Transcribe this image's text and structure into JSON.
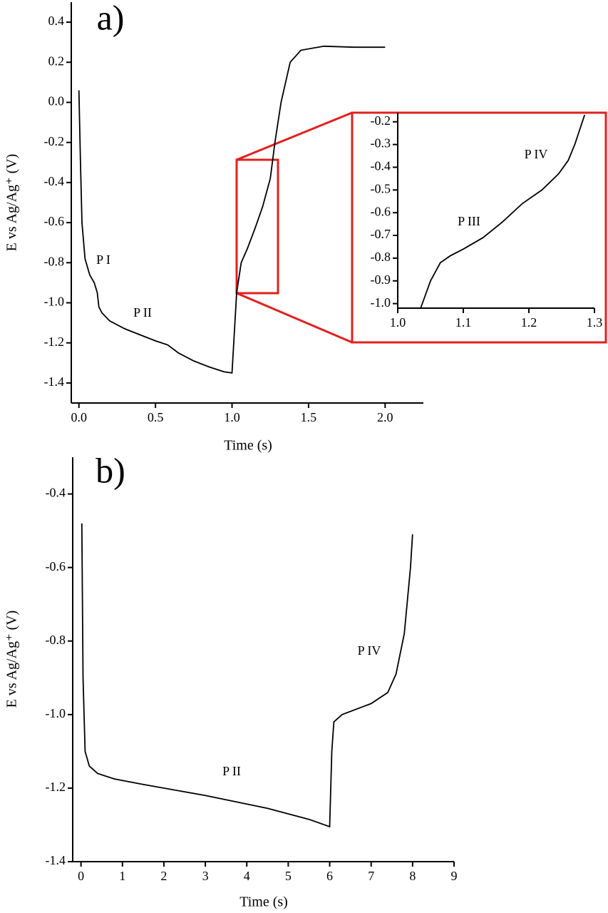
{
  "chart_data": [
    {
      "type": "line",
      "panel_label": "a)",
      "x_label": "Time (s)",
      "y_label": "E vs Ag/Ag⁺ (V)",
      "annotations": [
        "P I",
        "P II"
      ],
      "color": "#000000",
      "grid": false,
      "xlim": [
        -0.05,
        2.25
      ],
      "ylim": [
        -1.5,
        0.5
      ],
      "xticks": [
        {
          "value": 0,
          "label": "0.0"
        },
        0.5,
        {
          "value": 1,
          "label": "1.0"
        },
        1.5,
        {
          "value": 2,
          "label": "2.0"
        }
      ],
      "yticks": [
        0.4,
        0.2,
        {
          "value": 0,
          "label": "0.0"
        },
        -0.2,
        -0.4,
        -0.6,
        -0.8,
        {
          "value": -1,
          "label": "-1.0"
        },
        -1.2,
        -1.4
      ],
      "x": [
        0.0,
        0.01,
        0.02,
        0.04,
        0.07,
        0.1,
        0.12,
        0.13,
        0.15,
        0.2,
        0.3,
        0.4,
        0.5,
        0.58,
        0.65,
        0.75,
        0.85,
        0.95,
        1.0,
        1.03,
        1.06,
        1.1,
        1.15,
        1.2,
        1.25,
        1.28,
        1.32,
        1.38,
        1.45,
        1.6,
        1.8,
        2.0
      ],
      "values": [
        0.06,
        -0.3,
        -0.6,
        -0.78,
        -0.86,
        -0.9,
        -0.95,
        -1.02,
        -1.05,
        -1.09,
        -1.13,
        -1.16,
        -1.19,
        -1.21,
        -1.25,
        -1.29,
        -1.32,
        -1.345,
        -1.35,
        -0.95,
        -0.8,
        -0.73,
        -0.63,
        -0.52,
        -0.38,
        -0.2,
        0.0,
        0.2,
        0.26,
        0.28,
        0.275,
        0.275
      ]
    },
    {
      "type": "line",
      "annotations": [
        "P III",
        "P IV"
      ],
      "color": "#000000",
      "grid": false,
      "xlim": [
        1.0,
        1.3
      ],
      "ylim": [
        -1.02,
        -0.16
      ],
      "xticks": [
        {
          "value": 1,
          "label": "1.0"
        },
        1.1,
        1.2,
        1.3
      ],
      "yticks": [
        -0.2,
        -0.3,
        -0.4,
        -0.5,
        -0.6,
        -0.7,
        -0.8,
        -0.9,
        {
          "value": -1,
          "label": "-1.0"
        }
      ],
      "x": [
        1.035,
        1.05,
        1.065,
        1.08,
        1.1,
        1.13,
        1.16,
        1.19,
        1.22,
        1.245,
        1.26,
        1.27,
        1.285
      ],
      "values": [
        -1.02,
        -0.9,
        -0.82,
        -0.79,
        -0.76,
        -0.71,
        -0.64,
        -0.56,
        -0.5,
        -0.43,
        -0.37,
        -0.3,
        -0.17
      ]
    },
    {
      "type": "line",
      "panel_label": "b)",
      "x_label": "Time (s)",
      "y_label": "E vs Ag/Ag⁺ (V)",
      "annotations": [
        "P II",
        "P IV"
      ],
      "color": "#000000",
      "grid": false,
      "xlim": [
        -0.2,
        9
      ],
      "ylim": [
        -1.4,
        -0.3
      ],
      "xticks": [
        0,
        1,
        2,
        3,
        4,
        5,
        6,
        7,
        8,
        9
      ],
      "yticks": [
        -0.4,
        -0.6,
        -0.8,
        {
          "value": -1,
          "label": "-1.0"
        },
        -1.2,
        -1.4
      ],
      "x": [
        0.02,
        0.05,
        0.1,
        0.2,
        0.4,
        0.8,
        1.5,
        3,
        4.5,
        5.5,
        6.0,
        6.05,
        6.1,
        6.3,
        7.0,
        7.4,
        7.6,
        7.8,
        7.95,
        8.0
      ],
      "values": [
        -0.48,
        -0.9,
        -1.1,
        -1.14,
        -1.16,
        -1.175,
        -1.19,
        -1.22,
        -1.255,
        -1.285,
        -1.305,
        -1.1,
        -1.02,
        -1.0,
        -0.97,
        -0.94,
        -0.89,
        -0.78,
        -0.6,
        -0.51
      ]
    }
  ]
}
